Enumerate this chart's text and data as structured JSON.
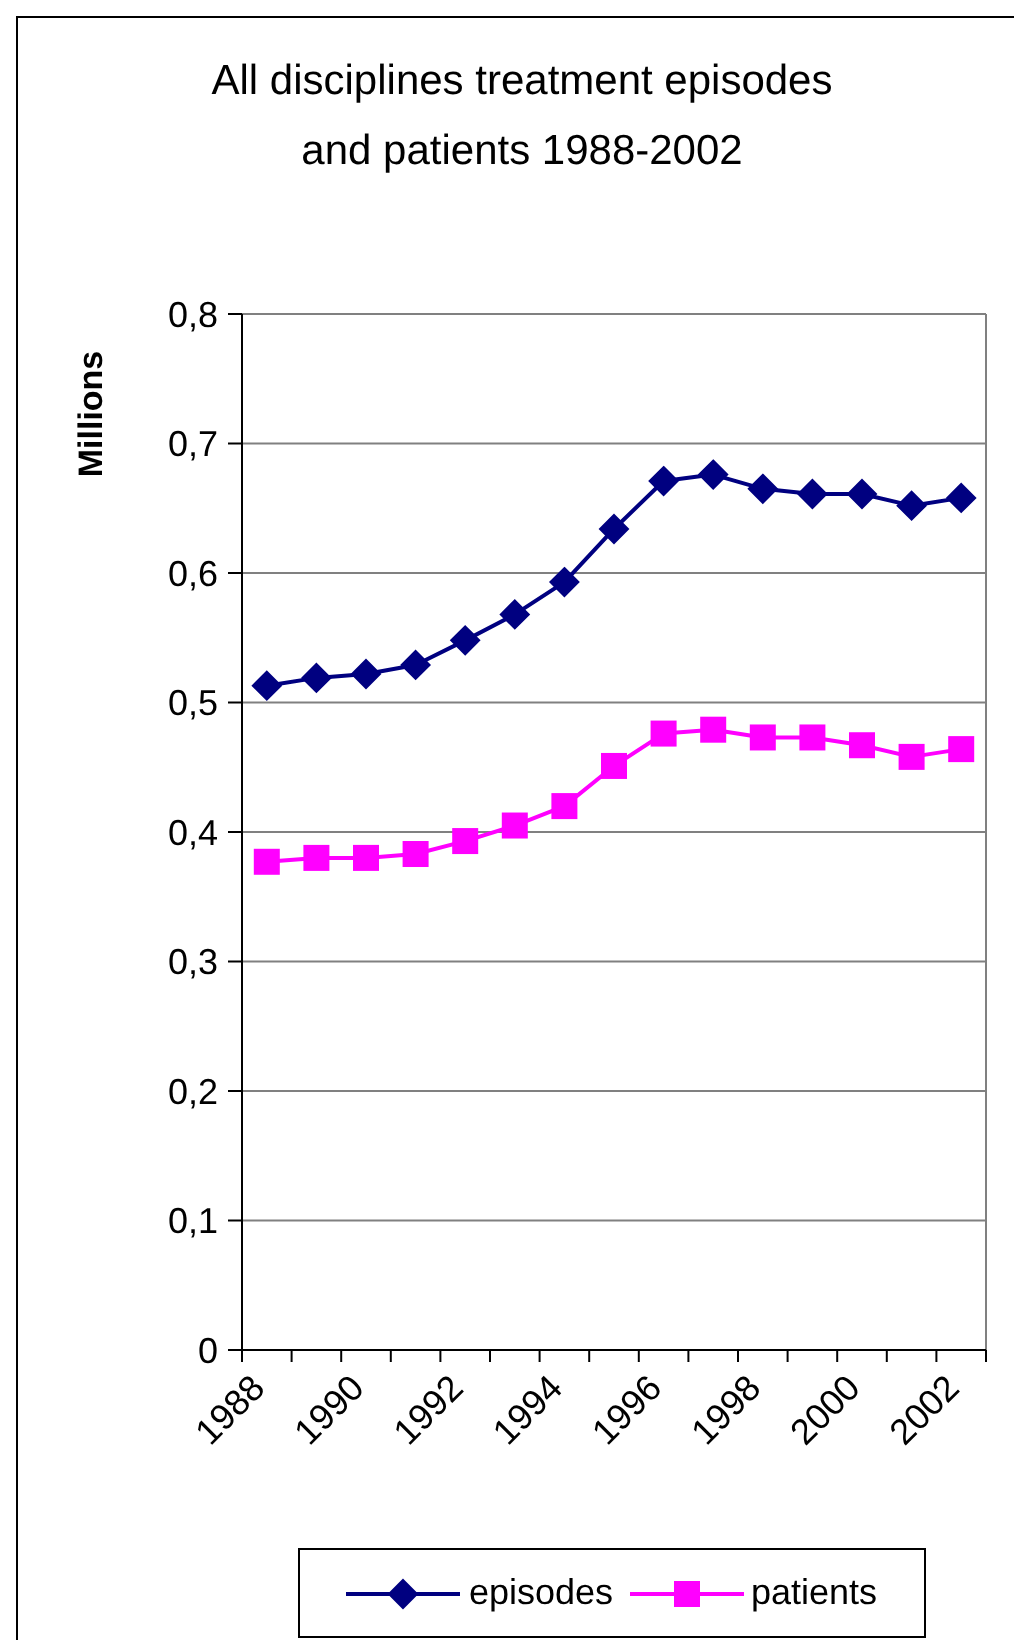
{
  "chart_data": {
    "type": "line",
    "title": "All disciplines treatment episodes\nand patients 1988-2002",
    "ylabel": "Millions",
    "categories": [
      "1988",
      null,
      "1990",
      null,
      "1992",
      null,
      "1994",
      null,
      "1996",
      null,
      "1998",
      null,
      "2000",
      null,
      "2002"
    ],
    "series": [
      {
        "name": "episodes",
        "color": "#000080",
        "marker": "diamond",
        "values": [
          0.513,
          0.519,
          0.522,
          0.529,
          0.548,
          0.568,
          0.593,
          0.634,
          0.671,
          0.676,
          0.665,
          0.661,
          0.661,
          0.652,
          0.658
        ]
      },
      {
        "name": "patients",
        "color": "#ff00ff",
        "marker": "square",
        "values": [
          0.377,
          0.38,
          0.38,
          0.383,
          0.393,
          0.405,
          0.42,
          0.451,
          0.476,
          0.479,
          0.473,
          0.473,
          0.467,
          0.458,
          0.464
        ]
      }
    ],
    "ylim": [
      0,
      0.8
    ],
    "yticks": [
      0,
      {
        "value": 0.1,
        "label": "0,1"
      },
      {
        "value": 0.2,
        "label": "0,2"
      },
      {
        "value": 0.3,
        "label": "0,3"
      },
      {
        "value": 0.4,
        "label": "0,4"
      },
      {
        "value": 0.5,
        "label": "0,5"
      },
      {
        "value": 0.6,
        "label": "0,6"
      },
      {
        "value": 0.7,
        "label": "0,7"
      },
      {
        "value": 0.8,
        "label": "0,8"
      }
    ],
    "grid": "y",
    "legend": "bottom"
  }
}
